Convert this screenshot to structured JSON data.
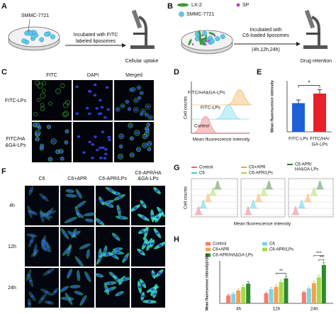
{
  "panel_labels": [
    "A",
    "B",
    "C",
    "D",
    "E",
    "F",
    "G",
    "H"
  ],
  "panel_a": {
    "cell_line": "SMMC-7721",
    "step": [
      "Incubated with FITC",
      "labeled liposomes"
    ],
    "result": "Cellular uptake"
  },
  "panel_b": {
    "legend": [
      "LX-2",
      "SP",
      "SMMC-7721"
    ],
    "step": [
      "Incubated with",
      "C6-loaded liposomes",
      "(4h,12h,24h)"
    ],
    "result": "Drug retention"
  },
  "panel_c": {
    "columns": [
      "FITC",
      "DAPI",
      "Merged"
    ],
    "rows": [
      [
        "FITC-LPs"
      ],
      [
        "FITC/HA",
        "&GA-LPs"
      ]
    ]
  },
  "panel_d": {
    "curves": [
      "FITC/HA&GA-LPs",
      "FITC-LPs",
      "Control"
    ],
    "y_label": "Cell counts",
    "x_label": "Mean fluorescence intensity"
  },
  "panel_e": {
    "type": "bar",
    "y_label": "Mean fluorescence intensity",
    "categories": [
      [
        "FITC-LPs"
      ],
      [
        "FITC/HA/",
        "GA-LPs"
      ]
    ],
    "values": [
      4.5,
      6.0
    ],
    "errors": [
      0.5,
      0.6
    ],
    "colors": [
      "#1f5fd6",
      "#e8202a"
    ],
    "ylim": [
      0,
      8
    ],
    "significance": "*"
  },
  "panel_f": {
    "columns": [
      [
        "C6"
      ],
      [
        "C6+APR"
      ],
      [
        "C6-APR/LPs"
      ],
      [
        "C6-APR/HA",
        "&GA-LPs"
      ]
    ],
    "rows": [
      "4h",
      "12h",
      "24h"
    ]
  },
  "panel_g": {
    "legend": [
      {
        "name": [
          "Control"
        ],
        "color": "#f0607a"
      },
      {
        "name": [
          "C6"
        ],
        "color": "#3fc8e0"
      },
      {
        "name": [
          "C6+APR"
        ],
        "color": "#f5a04a"
      },
      {
        "name": [
          "C6-APR/LPs"
        ],
        "color": "#a6d84a"
      },
      {
        "name": [
          "C6-APR/",
          "HA&GA-LPs"
        ],
        "color": "#2e7d2e"
      }
    ],
    "y_label": "Cell counts",
    "x_label": "Mean fluorescence intensity"
  },
  "panel_h": {
    "type": "bar",
    "y_label": "Mean fluorescence intensity(×10³)",
    "categories": [
      "4h",
      "12h",
      "24h"
    ],
    "ylim": [
      0,
      4
    ],
    "series": [
      {
        "name": "Control",
        "color": "#f47c6c",
        "values": [
          0.75,
          0.95,
          1.05
        ],
        "errors": [
          0.1,
          0.12,
          0.12
        ]
      },
      {
        "name": "C6",
        "color": "#7fd3e6",
        "values": [
          0.9,
          1.35,
          1.4
        ],
        "errors": [
          0.12,
          0.15,
          0.15
        ]
      },
      {
        "name": "C6+APR",
        "color": "#f5a04a",
        "values": [
          1.2,
          1.55,
          1.9
        ],
        "errors": [
          0.15,
          0.18,
          0.2
        ]
      },
      {
        "name": "C6-APR/LPs",
        "color": "#a6d84a",
        "values": [
          1.55,
          2.0,
          2.45
        ],
        "errors": [
          0.18,
          0.2,
          0.2
        ]
      },
      {
        "name": "C6-APR/HA&GA-LPs",
        "color": "#2e8b2e",
        "values": [
          1.85,
          2.35,
          3.6
        ],
        "errors": [
          0.2,
          0.22,
          0.25
        ]
      }
    ],
    "annotations": [
      "**",
      "***",
      "**"
    ]
  }
}
